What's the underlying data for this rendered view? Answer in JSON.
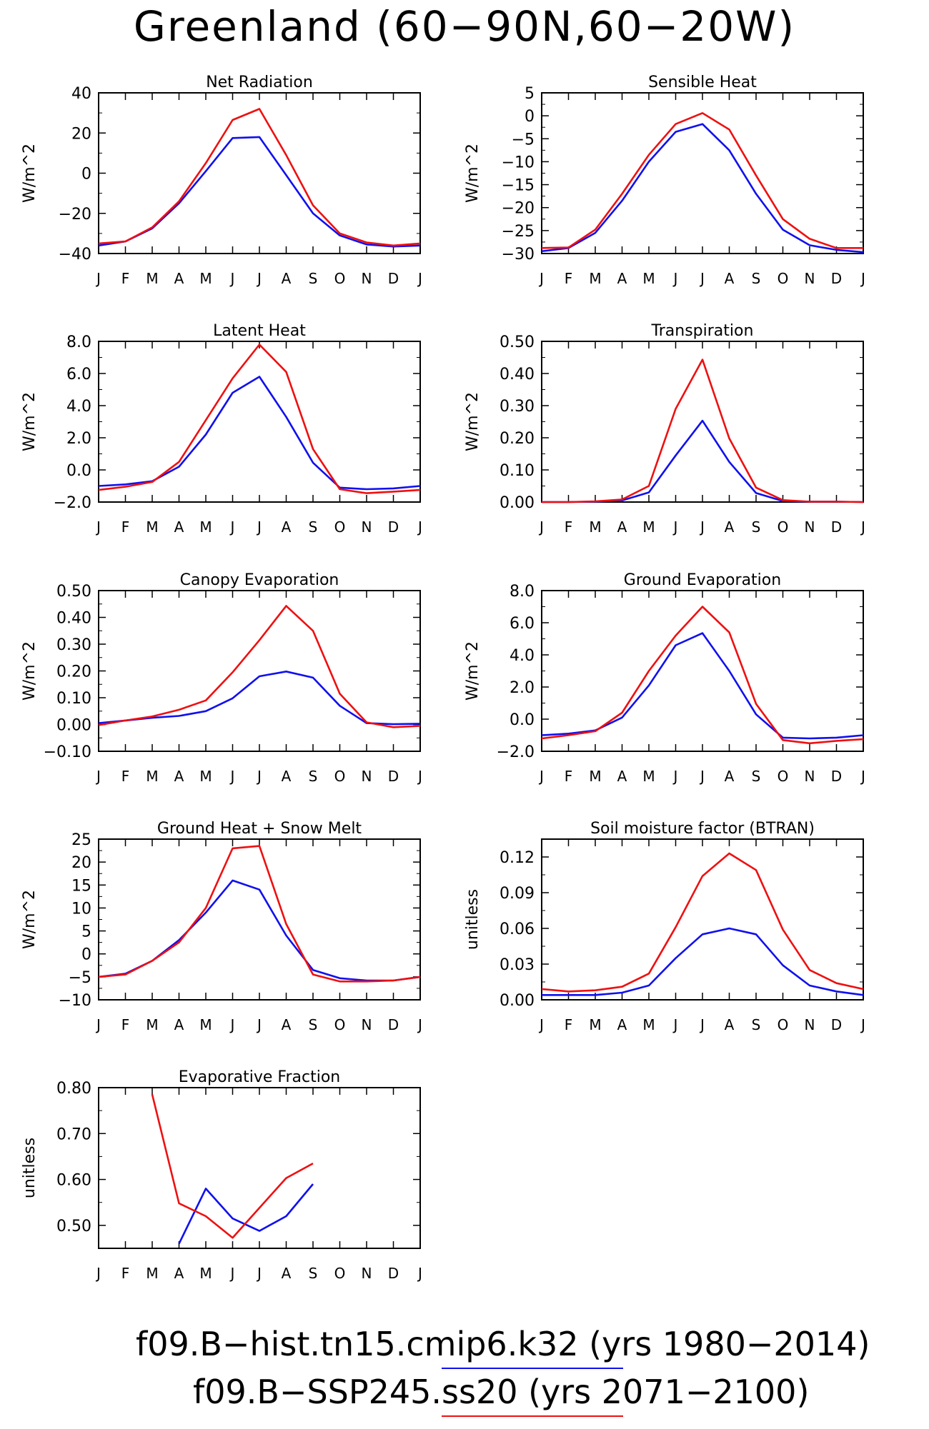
{
  "title": "Greenland (60−90N,60−20W)",
  "months": [
    "J",
    "F",
    "M",
    "A",
    "M",
    "J",
    "J",
    "A",
    "S",
    "O",
    "N",
    "D",
    "J"
  ],
  "colors": {
    "hist": "#1010ee",
    "ssp": "#ee1010"
  },
  "legend": [
    {
      "label": "f09.B−hist.tn15.cmip6.k32 (yrs 1980−2014)",
      "color": "#1010ee"
    },
    {
      "label": "f09.B−SSP245.ss20 (yrs 2071−2100)",
      "color": "#ee1010"
    }
  ],
  "chart_data": [
    {
      "type": "line",
      "title": "Net Radiation",
      "ylabel": "W/m^2",
      "ylim": [
        -40,
        40
      ],
      "yticks": [
        -40,
        -20,
        0,
        20,
        40
      ],
      "yticklabels": [
        "−40",
        "−20",
        "0",
        "20",
        "40"
      ],
      "series": [
        {
          "values": [
            -36,
            -34,
            -27.5,
            -15,
            1,
            17.5,
            18,
            -1,
            -20,
            -31,
            -35.5,
            -36.5,
            -36
          ]
        },
        {
          "values": [
            -35,
            -34,
            -27,
            -14,
            5,
            26.5,
            32,
            9,
            -16,
            -30,
            -34.5,
            -36,
            -35
          ]
        }
      ]
    },
    {
      "type": "line",
      "title": "Sensible Heat",
      "ylabel": "W/m^2",
      "ylim": [
        -30,
        5
      ],
      "yticks": [
        -30,
        -25,
        -20,
        -15,
        -10,
        -5,
        0,
        5
      ],
      "yticklabels": [
        "−30",
        "−25",
        "−20",
        "−15",
        "−10",
        "−5",
        "0",
        "5"
      ],
      "series": [
        {
          "values": [
            -29.5,
            -28.8,
            -25.5,
            -18.5,
            -10,
            -3.5,
            -1.8,
            -7.5,
            -17,
            -24.8,
            -28.2,
            -29.2,
            -29.7
          ]
        },
        {
          "values": [
            -28.8,
            -28.7,
            -24.8,
            -17,
            -8.5,
            -1.8,
            0.6,
            -3,
            -13,
            -22.5,
            -26.8,
            -28.8,
            -28.8
          ]
        }
      ]
    },
    {
      "type": "line",
      "title": "Latent Heat",
      "ylabel": "W/m^2",
      "ylim": [
        -2,
        8
      ],
      "yticks": [
        -2,
        0,
        2,
        4,
        6,
        8
      ],
      "yticklabels": [
        "−2.0",
        "0.0",
        "2.0",
        "4.0",
        "6.0",
        "8.0"
      ],
      "series": [
        {
          "values": [
            -1.0,
            -0.9,
            -0.7,
            0.2,
            2.2,
            4.8,
            5.8,
            3.3,
            0.45,
            -1.1,
            -1.2,
            -1.15,
            -1.0
          ]
        },
        {
          "values": [
            -1.25,
            -1.05,
            -0.75,
            0.5,
            3.1,
            5.7,
            7.8,
            6.1,
            1.3,
            -1.2,
            -1.45,
            -1.35,
            -1.25
          ]
        }
      ]
    },
    {
      "type": "line",
      "title": "Transpiration",
      "ylabel": "W/m^2",
      "ylim": [
        0,
        0.5
      ],
      "yticks": [
        0,
        0.1,
        0.2,
        0.3,
        0.4,
        0.5
      ],
      "yticklabels": [
        "0.00",
        "0.10",
        "0.20",
        "0.30",
        "0.40",
        "0.50"
      ],
      "series": [
        {
          "values": [
            0,
            0,
            0.001,
            0.005,
            0.03,
            0.145,
            0.253,
            0.125,
            0.028,
            0.003,
            0.001,
            0.001,
            0
          ]
        },
        {
          "values": [
            0,
            0,
            0.002,
            0.008,
            0.05,
            0.29,
            0.443,
            0.198,
            0.045,
            0.006,
            0.001,
            0.001,
            0
          ]
        }
      ]
    },
    {
      "type": "line",
      "title": "Canopy Evaporation",
      "ylabel": "W/m^2",
      "ylim": [
        -0.1,
        0.5
      ],
      "yticks": [
        -0.1,
        0,
        0.1,
        0.2,
        0.3,
        0.4,
        0.5
      ],
      "yticklabels": [
        "−0.10",
        "0.00",
        "0.10",
        "0.20",
        "0.30",
        "0.40",
        "0.50"
      ],
      "series": [
        {
          "values": [
            0.005,
            0.015,
            0.025,
            0.032,
            0.05,
            0.098,
            0.18,
            0.198,
            0.175,
            0.07,
            0.005,
            0.001,
            0.003
          ]
        },
        {
          "values": [
            -0.002,
            0.015,
            0.03,
            0.055,
            0.09,
            0.195,
            0.315,
            0.443,
            0.35,
            0.115,
            0.008,
            -0.01,
            -0.005
          ]
        }
      ]
    },
    {
      "type": "line",
      "title": "Ground Evaporation",
      "ylabel": "W/m^2",
      "ylim": [
        -2,
        8
      ],
      "yticks": [
        -2,
        0,
        2,
        4,
        6,
        8
      ],
      "yticklabels": [
        "−2.0",
        "0.0",
        "2.0",
        "4.0",
        "6.0",
        "8.0"
      ],
      "series": [
        {
          "values": [
            -1.0,
            -0.9,
            -0.7,
            0.1,
            2.1,
            4.6,
            5.35,
            3.0,
            0.3,
            -1.15,
            -1.2,
            -1.15,
            -1.0
          ]
        },
        {
          "values": [
            -1.2,
            -1.0,
            -0.75,
            0.4,
            3.0,
            5.2,
            7.0,
            5.4,
            0.95,
            -1.3,
            -1.5,
            -1.35,
            -1.25
          ]
        }
      ]
    },
    {
      "type": "line",
      "title": "Ground Heat + Snow Melt",
      "ylabel": "W/m^2",
      "ylim": [
        -10,
        25
      ],
      "yticks": [
        -10,
        -5,
        0,
        5,
        10,
        15,
        20,
        25
      ],
      "yticklabels": [
        "−10",
        "−5",
        "0",
        "5",
        "10",
        "15",
        "20",
        "25"
      ],
      "series": [
        {
          "values": [
            -5,
            -4.3,
            -1.5,
            3,
            9,
            16,
            14,
            4,
            -3.5,
            -5.3,
            -5.8,
            -5.8,
            -5
          ]
        },
        {
          "values": [
            -5,
            -4.5,
            -1.5,
            2.5,
            10,
            23,
            23.5,
            6.5,
            -4.5,
            -6,
            -6,
            -5.8,
            -5
          ]
        }
      ]
    },
    {
      "type": "line",
      "title": "Soil moisture factor (BTRAN)",
      "ylabel": "unitless",
      "ylim": [
        0,
        0.135
      ],
      "yticks": [
        0,
        0.03,
        0.06,
        0.09,
        0.12
      ],
      "yticklabels": [
        "0.00",
        "0.03",
        "0.06",
        "0.09",
        "0.12"
      ],
      "series": [
        {
          "values": [
            0.004,
            0.004,
            0.004,
            0.006,
            0.012,
            0.035,
            0.055,
            0.06,
            0.055,
            0.029,
            0.012,
            0.007,
            0.004
          ]
        },
        {
          "values": [
            0.009,
            0.007,
            0.008,
            0.011,
            0.022,
            0.061,
            0.104,
            0.123,
            0.109,
            0.059,
            0.025,
            0.014,
            0.009
          ]
        }
      ]
    },
    {
      "type": "line",
      "title": "Evaporative Fraction",
      "ylabel": "unitless",
      "ylim": [
        0.45,
        0.8
      ],
      "yticks": [
        0.5,
        0.6,
        0.7,
        0.8
      ],
      "yticklabels": [
        "0.50",
        "0.60",
        "0.70",
        "0.80"
      ],
      "series": [
        {
          "values": [
            null,
            null,
            null,
            0.46,
            0.58,
            0.515,
            0.488,
            0.52,
            0.59,
            null,
            null,
            null,
            null
          ]
        },
        {
          "values": [
            null,
            null,
            0.785,
            0.548,
            0.52,
            0.473,
            0.538,
            0.603,
            0.635,
            null,
            null,
            null,
            null
          ]
        }
      ]
    }
  ]
}
